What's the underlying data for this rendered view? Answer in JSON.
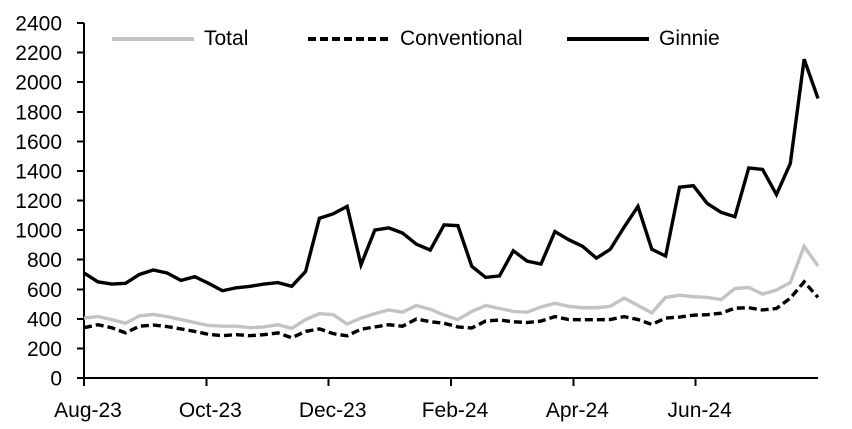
{
  "background_color": "#ffffff",
  "chart_data": {
    "type": "line",
    "title": "",
    "xlabel": "",
    "ylabel": "",
    "x_unit": "week",
    "x_tick_labels": [
      "Aug-23",
      "Oct-23",
      "Dec-23",
      "Feb-24",
      "Apr-24",
      "Jun-24"
    ],
    "x_tick_positions_months": [
      0,
      2,
      4,
      6,
      8,
      10
    ],
    "x_total_months": 12,
    "ylim": [
      0,
      2400
    ],
    "y_tick_step": 200,
    "grid": false,
    "legend_position": "top-inside",
    "axis_color": "#000000",
    "series": [
      {
        "name": "Total",
        "color": "#c3c3c3",
        "dash": "solid",
        "values": [
          405,
          415,
          395,
          370,
          420,
          430,
          415,
          395,
          375,
          355,
          350,
          350,
          340,
          345,
          360,
          335,
          395,
          435,
          428,
          365,
          405,
          435,
          460,
          445,
          490,
          465,
          425,
          395,
          450,
          490,
          470,
          450,
          445,
          480,
          505,
          485,
          475,
          475,
          485,
          540,
          490,
          440,
          545,
          560,
          550,
          545,
          530,
          605,
          612,
          567,
          595,
          645,
          890,
          757
        ]
      },
      {
        "name": "Conventional",
        "color": "#000000",
        "dash": "dashed",
        "values": [
          340,
          360,
          340,
          305,
          350,
          358,
          348,
          332,
          315,
          295,
          286,
          293,
          286,
          293,
          305,
          272,
          315,
          332,
          300,
          285,
          330,
          345,
          360,
          350,
          399,
          381,
          370,
          345,
          338,
          385,
          392,
          380,
          375,
          385,
          415,
          395,
          394,
          394,
          395,
          415,
          395,
          362,
          405,
          412,
          425,
          428,
          438,
          472,
          475,
          460,
          470,
          540,
          650,
          545
        ]
      },
      {
        "name": "Ginnie",
        "color": "#000000",
        "dash": "solid",
        "values": [
          710,
          650,
          635,
          640,
          700,
          730,
          710,
          660,
          685,
          640,
          590,
          610,
          620,
          635,
          645,
          620,
          720,
          1080,
          1110,
          1160,
          765,
          1000,
          1015,
          980,
          905,
          865,
          1035,
          1030,
          755,
          680,
          690,
          860,
          790,
          770,
          990,
          935,
          890,
          810,
          870,
          1020,
          1160,
          870,
          825,
          1290,
          1300,
          1180,
          1120,
          1090,
          1420,
          1410,
          1240,
          1450,
          2155,
          1890
        ]
      }
    ]
  }
}
